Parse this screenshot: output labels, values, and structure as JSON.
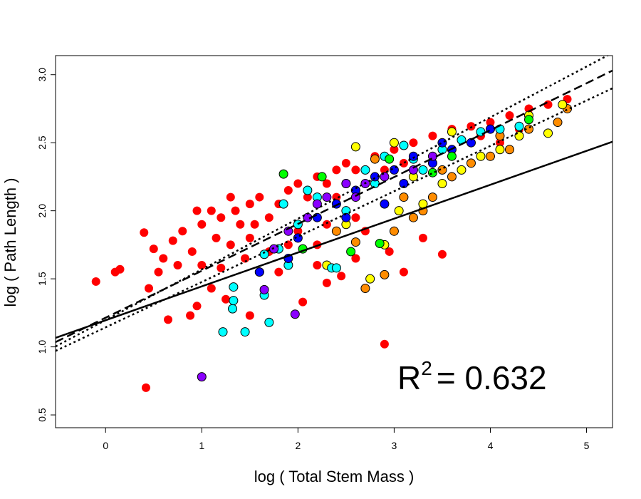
{
  "chart_data": {
    "type": "scatter",
    "xlabel": "log ( Total Stem Mass  )",
    "ylabel": "log ( Path Length )",
    "xlim": [
      -0.52,
      5.27
    ],
    "ylim": [
      0.406,
      3.14
    ],
    "xticks": [
      0,
      1,
      2,
      3,
      4,
      5
    ],
    "yticks": [
      0.5,
      {
        "value": 1,
        "label": "1.0"
      },
      1.5,
      {
        "value": 2,
        "label": "2.0"
      },
      2.5,
      {
        "value": 3,
        "label": "3.0"
      }
    ],
    "annotation": {
      "base": "R",
      "sup": "2",
      "text": "= 0.632"
    },
    "series": [
      {
        "color": "#ff0000",
        "outline": false,
        "x": [
          -0.1,
          0.1,
          0.15,
          0.42,
          0.4,
          0.45,
          0.65,
          0.88,
          0.95,
          1.1,
          1.25,
          1.5,
          2.05,
          2.9,
          3.5,
          3.1,
          2.3,
          2.45,
          0.5,
          0.6,
          0.7,
          0.8,
          0.9,
          1.0,
          1.1,
          1.2,
          1.3,
          1.4,
          1.5,
          1.6,
          1.7,
          1.8,
          1.9,
          2.0,
          2.1,
          2.2,
          2.3,
          2.4,
          2.5,
          2.6,
          2.8,
          3.0,
          3.2,
          3.4,
          3.6,
          3.8,
          4.0,
          4.2,
          4.4,
          4.6,
          4.8,
          1.0,
          1.3,
          1.5,
          1.7,
          2.0,
          2.3,
          2.6,
          1.2,
          0.75,
          1.45,
          1.9,
          2.2,
          2.7,
          2.95,
          0.55,
          3.3,
          1.35,
          1.55,
          2.4,
          2.9,
          3.1,
          3.5,
          3.9,
          4.3,
          4.1,
          1.15,
          0.95,
          1.8,
          2.2,
          2.6
        ],
        "y": [
          1.48,
          1.55,
          1.57,
          0.7,
          1.84,
          1.43,
          1.2,
          1.23,
          1.3,
          1.43,
          1.35,
          1.23,
          1.33,
          1.02,
          1.68,
          1.55,
          1.47,
          1.52,
          1.72,
          1.65,
          1.78,
          1.85,
          1.7,
          1.9,
          2.0,
          1.95,
          2.1,
          1.9,
          2.05,
          2.1,
          1.95,
          2.05,
          2.15,
          2.2,
          2.1,
          2.25,
          2.2,
          2.3,
          2.35,
          2.3,
          2.4,
          2.45,
          2.5,
          2.55,
          2.6,
          2.62,
          2.65,
          2.7,
          2.75,
          2.78,
          2.82,
          1.6,
          1.75,
          1.8,
          1.7,
          1.85,
          1.9,
          1.95,
          1.58,
          1.6,
          1.65,
          1.75,
          1.75,
          1.85,
          1.7,
          1.55,
          1.8,
          2.0,
          1.9,
          2.1,
          2.3,
          2.35,
          2.45,
          2.55,
          2.6,
          2.5,
          1.8,
          2.0,
          1.55,
          1.6,
          1.65
        ]
      },
      {
        "color": "#ff8c00",
        "outline": true,
        "x": [
          2.7,
          2.9,
          2.6,
          3.0,
          3.2,
          3.4,
          3.6,
          3.8,
          4.0,
          4.2,
          4.4,
          4.7,
          4.8,
          2.5,
          2.8,
          3.1,
          3.5,
          2.4,
          3.3,
          4.1
        ],
        "y": [
          1.43,
          1.53,
          1.77,
          1.85,
          1.95,
          2.1,
          2.25,
          2.35,
          2.4,
          2.45,
          2.6,
          2.65,
          2.75,
          2.2,
          2.38,
          2.1,
          2.3,
          1.85,
          2.0,
          2.55
        ]
      },
      {
        "color": "#ffff00",
        "outline": true,
        "x": [
          2.6,
          2.75,
          2.9,
          3.05,
          3.3,
          3.5,
          3.7,
          3.9,
          4.1,
          4.3,
          4.6,
          4.75,
          3.0,
          3.6,
          2.3,
          3.2,
          2.5,
          4.4
        ],
        "y": [
          2.47,
          1.5,
          1.75,
          2.0,
          2.05,
          2.2,
          2.3,
          2.4,
          2.45,
          2.55,
          2.57,
          2.78,
          2.5,
          2.58,
          1.6,
          2.25,
          1.9,
          2.7
        ]
      },
      {
        "color": "#00ffff",
        "outline": true,
        "x": [
          1.22,
          1.32,
          1.33,
          1.33,
          1.45,
          1.7,
          1.65,
          1.6,
          1.65,
          1.8,
          1.9,
          2.0,
          2.2,
          2.35,
          2.4,
          2.5,
          2.7,
          2.9,
          3.1,
          3.3,
          3.5,
          3.7,
          3.9,
          4.1,
          4.3,
          2.1,
          1.85,
          2.8,
          3.2
        ],
        "y": [
          1.11,
          1.28,
          1.34,
          1.44,
          1.11,
          1.18,
          1.38,
          1.55,
          1.68,
          1.72,
          1.6,
          1.9,
          2.1,
          1.58,
          1.58,
          2.0,
          2.3,
          2.4,
          2.48,
          2.3,
          2.45,
          2.52,
          2.58,
          2.6,
          2.62,
          2.15,
          2.05,
          2.2,
          2.38
        ]
      },
      {
        "color": "#0000ff",
        "outline": true,
        "x": [
          1.6,
          1.9,
          2.0,
          2.2,
          2.4,
          2.6,
          2.8,
          3.0,
          3.2,
          3.4,
          3.6,
          3.8,
          4.0,
          2.5,
          2.9,
          3.1,
          3.5
        ],
        "y": [
          1.55,
          1.65,
          1.8,
          1.95,
          2.05,
          2.15,
          2.25,
          2.3,
          2.4,
          2.35,
          2.45,
          2.5,
          2.6,
          1.95,
          2.05,
          2.2,
          2.5
        ]
      },
      {
        "color": "#8a00ff",
        "outline": true,
        "x": [
          1.0,
          1.97,
          1.65,
          1.75,
          1.9,
          2.1,
          2.3,
          2.5,
          2.7,
          2.9,
          3.2,
          3.4,
          2.2,
          2.6
        ],
        "y": [
          0.78,
          1.24,
          1.42,
          1.72,
          1.85,
          1.95,
          2.1,
          2.2,
          2.2,
          2.25,
          2.3,
          2.4,
          2.05,
          2.1
        ]
      },
      {
        "color": "#00ff00",
        "outline": true,
        "x": [
          1.85,
          2.25,
          2.05,
          2.55,
          2.85,
          3.4,
          4.4,
          3.6,
          2.95
        ],
        "y": [
          2.27,
          2.25,
          1.72,
          1.7,
          1.76,
          2.28,
          2.67,
          2.4,
          2.38
        ]
      }
    ],
    "lines": [
      {
        "style": "solid",
        "x": [
          -0.52,
          5.27
        ],
        "y": [
          1.066,
          2.507
        ]
      },
      {
        "style": "dashed",
        "x": [
          -0.52,
          5.27
        ],
        "y": [
          1.035,
          3.03
        ]
      },
      {
        "style": "dotted",
        "x": [
          -0.52,
          5.27
        ],
        "y": [
          1.003,
          3.16
        ]
      },
      {
        "style": "dotted",
        "x": [
          -0.52,
          5.27
        ],
        "y": [
          0.97,
          2.9
        ]
      }
    ]
  }
}
